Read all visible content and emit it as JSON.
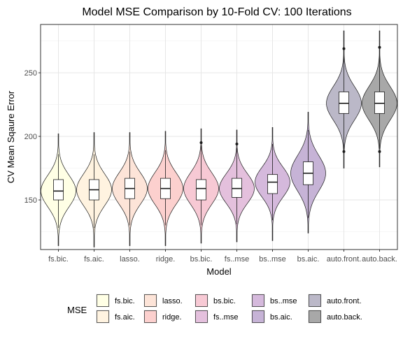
{
  "chart_data": {
    "type": "violin",
    "title": "Model MSE Comparison by 10-Fold CV: 100 Iterations",
    "xlabel": "Model",
    "ylabel": "CV Mean Sqaure Error",
    "yticks": [
      150,
      200,
      250
    ],
    "ylim": [
      111,
      288
    ],
    "grid": true,
    "legend": {
      "title": "MSE",
      "position": "bottom"
    },
    "categories": [
      "fs.bic.",
      "fs.aic.",
      "lasso.",
      "ridge.",
      "bs.bic.",
      "fs..mse",
      "bs..mse",
      "bs.aic.",
      "auto.front.",
      "auto.back."
    ],
    "legend_labels": [
      "fs.bic.",
      "fs.aic.",
      "lasso.",
      "ridge.",
      "bs.bic.",
      "fs..mse",
      "bs..mse",
      "bs.aic.",
      "auto.front.",
      "auto.back."
    ],
    "fill_colors": [
      "#ffffe5",
      "#fff3e0",
      "#fde4d8",
      "#fcd0ce",
      "#f7c9d4",
      "#e4c0dd",
      "#d5b9dc",
      "#c6b3d6",
      "#bbb8c8",
      "#a8a8a8"
    ],
    "series": [
      {
        "median": 157,
        "q1": 150,
        "q3": 166,
        "whisker_low": 128,
        "whisker_high": 186,
        "min": 114,
        "max": 202,
        "outliers": []
      },
      {
        "median": 158,
        "q1": 150,
        "q3": 166,
        "whisker_low": 128,
        "whisker_high": 186,
        "min": 113,
        "max": 203,
        "outliers": []
      },
      {
        "median": 159,
        "q1": 151,
        "q3": 167,
        "whisker_low": 130,
        "whisker_high": 188,
        "min": 114,
        "max": 203,
        "outliers": []
      },
      {
        "median": 159,
        "q1": 151,
        "q3": 167,
        "whisker_low": 130,
        "whisker_high": 189,
        "min": 114,
        "max": 204,
        "outliers": []
      },
      {
        "median": 159,
        "q1": 150,
        "q3": 166,
        "whisker_low": 130,
        "whisker_high": 193,
        "min": 116,
        "max": 206,
        "outliers": [
          195
        ]
      },
      {
        "median": 159,
        "q1": 152,
        "q3": 167,
        "whisker_low": 131,
        "whisker_high": 191,
        "min": 117,
        "max": 205,
        "outliers": [
          194
        ]
      },
      {
        "median": 164,
        "q1": 155,
        "q3": 170,
        "whisker_low": 134,
        "whisker_high": 194,
        "min": 118,
        "max": 207,
        "outliers": []
      },
      {
        "median": 171,
        "q1": 162,
        "q3": 180,
        "whisker_low": 136,
        "whisker_high": 205,
        "min": 124,
        "max": 219,
        "outliers": []
      },
      {
        "median": 226,
        "q1": 218,
        "q3": 235,
        "whisker_low": 189,
        "whisker_high": 268,
        "min": 175,
        "max": 283,
        "outliers": [
          188,
          269
        ]
      },
      {
        "median": 226,
        "q1": 218,
        "q3": 235,
        "whisker_low": 190,
        "whisker_high": 268,
        "min": 176,
        "max": 283,
        "outliers": [
          188,
          270
        ]
      }
    ]
  }
}
